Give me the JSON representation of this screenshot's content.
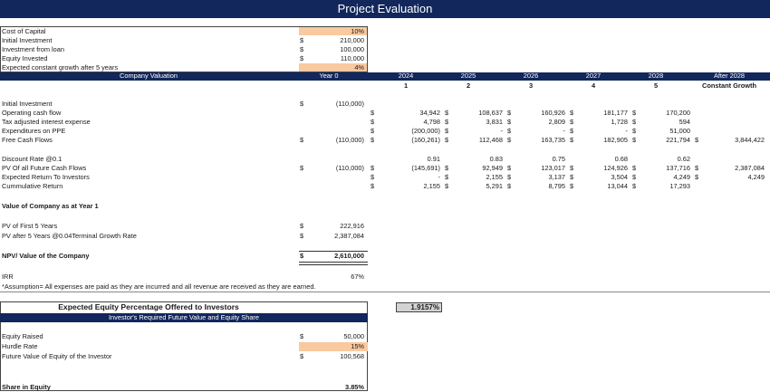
{
  "title": "Project Evaluation",
  "inputs": [
    {
      "label": "Cost of Capital",
      "cur": "",
      "value": "10%",
      "hl": true
    },
    {
      "label": "Initial Investment",
      "cur": "$",
      "value": "210,000",
      "hl": false
    },
    {
      "label": "Investment from loan",
      "cur": "$",
      "value": "100,000",
      "hl": false
    },
    {
      "label": "Equity Invested",
      "cur": "$",
      "value": "110,000",
      "hl": false
    },
    {
      "label": "Expected constant growth after 5 years",
      "cur": "",
      "value": "4%",
      "hl": true
    }
  ],
  "valuation_header": {
    "label": "Company Valuation",
    "years": [
      "Year 0",
      "2024",
      "2025",
      "2026",
      "2027",
      "2028",
      "After 2028"
    ],
    "periods": [
      "",
      "1",
      "2",
      "3",
      "4",
      "5",
      "Constant Growth"
    ]
  },
  "rows": [
    {
      "label": "Initial Investment",
      "vals": [
        [
          "$",
          "(110,000)"
        ],
        null,
        null,
        null,
        null,
        null,
        null
      ]
    },
    {
      "label": "Operating cash flow",
      "vals": [
        [
          "",
          "$"
        ],
        [
          "34,942",
          "$"
        ],
        [
          "108,637",
          "$"
        ],
        [
          "160,926",
          "$"
        ],
        [
          "181,177",
          "$"
        ],
        [
          "170,200",
          ""
        ],
        null
      ]
    },
    {
      "label": "Tax adjusted interest expense",
      "vals": [
        [
          "",
          "$"
        ],
        [
          "4,798",
          "$"
        ],
        [
          "3,831",
          "$"
        ],
        [
          "2,809",
          "$"
        ],
        [
          "1,728",
          "$"
        ],
        [
          "594",
          ""
        ],
        null
      ]
    },
    {
      "label": "Expenditures on PPE",
      "vals": [
        [
          "",
          "$"
        ],
        [
          "(200,000)",
          "$"
        ],
        [
          "-",
          "$"
        ],
        [
          "-",
          "$"
        ],
        [
          "-",
          "$"
        ],
        [
          "51,000",
          ""
        ],
        null
      ]
    },
    {
      "label": "Free Cash Flows",
      "vals": [
        [
          "$",
          "(110,000)",
          "$"
        ],
        [
          "(160,261)",
          "$"
        ],
        [
          "112,468",
          "$"
        ],
        [
          "163,735",
          "$"
        ],
        [
          "182,905",
          "$"
        ],
        [
          "221,794",
          "$"
        ],
        [
          "3,844,422",
          ""
        ]
      ]
    },
    {
      "label": "",
      "vals": []
    },
    {
      "label": "Discount Rate @0.1",
      "vals": [
        null,
        [
          "0.91",
          ""
        ],
        [
          "0.83",
          ""
        ],
        [
          "0.75",
          ""
        ],
        [
          "0.68",
          ""
        ],
        [
          "0.62",
          ""
        ],
        null
      ]
    },
    {
      "label": "PV Of all Future Cash Flows",
      "vals": [
        [
          "$",
          "(110,000)",
          "$"
        ],
        [
          "(145,691)",
          "$"
        ],
        [
          "92,949",
          "$"
        ],
        [
          "123,017",
          "$"
        ],
        [
          "124,926",
          "$"
        ],
        [
          "137,716",
          "$"
        ],
        [
          "2,387,084",
          ""
        ]
      ]
    },
    {
      "label": "Expected Return To Investors",
      "vals": [
        [
          "",
          "$"
        ],
        [
          "-",
          "$"
        ],
        [
          "2,155",
          "$"
        ],
        [
          "3,137",
          "$"
        ],
        [
          "3,504",
          "$"
        ],
        [
          "4,249",
          "$"
        ],
        [
          "4,249",
          ""
        ]
      ]
    },
    {
      "label": "Cummulative Return",
      "vals": [
        [
          "",
          "$"
        ],
        [
          "2,155",
          "$"
        ],
        [
          "5,291",
          "$"
        ],
        [
          "8,795",
          "$"
        ],
        [
          "13,044",
          "$"
        ],
        [
          "17,293",
          ""
        ],
        null
      ]
    }
  ],
  "value_year1": {
    "heading": "Value of Company as at Year 1",
    "pv_first": {
      "label": "PV of First 5 Years",
      "cur": "$",
      "value": "222,916"
    },
    "pv_after": {
      "label": "PV after 5 Years @0.04Terminal Growth Rate",
      "cur": "$",
      "value": "2,387,084"
    },
    "npv": {
      "label": "NPV/ Value of the Company",
      "cur": "$",
      "value": "2,610,000"
    },
    "irr": {
      "label": "IRR",
      "value": "67%"
    },
    "note": "*Assumption= All expenses are paid as they are incurred and all revenue are received as they are earned."
  },
  "equity": {
    "title": "Expected Equity Percentage Offered to Investors",
    "pct": "1.9157%",
    "subheader": "Investor's Required Future Value and Equity Share",
    "raised": {
      "label": "Equity Raised",
      "cur": "$",
      "value": "50,000"
    },
    "hurdle": {
      "label": "Hurdle Rate",
      "value": "15%"
    },
    "fv": {
      "label": "Future Value of Equity of the Investor",
      "cur": "$",
      "value": "100,568"
    },
    "share": {
      "label": "Share in Equity",
      "value": "3.85%"
    }
  },
  "colors": {
    "header": "#12275c",
    "highlight": "#f9c9a0",
    "pct_box": "#d3d3d3"
  }
}
